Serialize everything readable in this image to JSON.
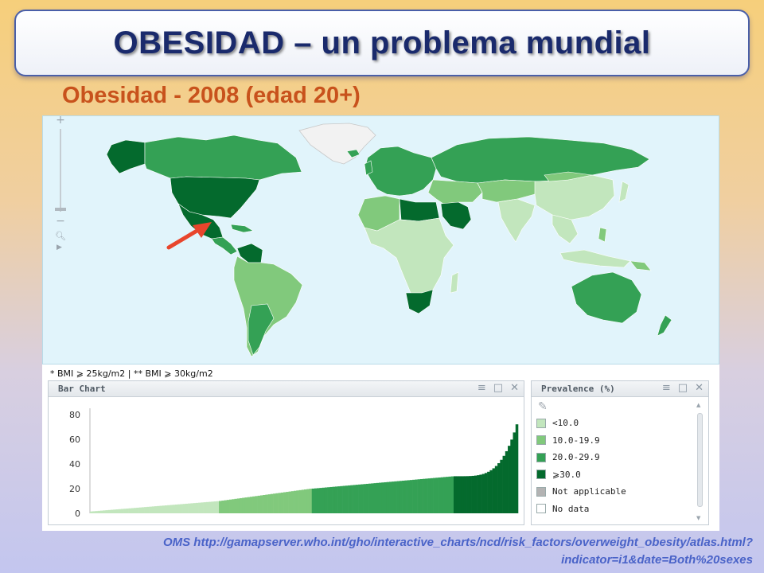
{
  "slide": {
    "title": "OBESIDAD –  un problema mundial",
    "subtitle": "Obesidad - 2008 (edad 20+)",
    "source_line1": "OMS http://gamapserver.who.int/gho/interactive_charts/ncd/risk_factors/overweight_obesity/atlas.html?",
    "source_line2": "indicator=i1&date=Both%20sexes"
  },
  "map": {
    "zoom_in": "+",
    "zoom_out": "−",
    "ocean_color": "#e1f4fb",
    "arrow_color": "#e8452c",
    "bmi_note": "* BMI ⩾ 25kg/m2  | ** BMI ⩾ 30kg/m2"
  },
  "bar_chart": {
    "title": "Bar Chart",
    "tools": [
      "≡",
      "□",
      "✕"
    ]
  },
  "legend": {
    "title": "Prevalence (%)",
    "tools": [
      "≡",
      "□",
      "✕"
    ],
    "items": [
      {
        "label": "<10.0",
        "color": "#c2e6bd"
      },
      {
        "label": "10.0-19.9",
        "color": "#81c97c"
      },
      {
        "label": "20.0-29.9",
        "color": "#34a155"
      },
      {
        "label": "⩾30.0",
        "color": "#046a2d"
      },
      {
        "label": "Not applicable",
        "color": "#b3b3b3"
      },
      {
        "label": "No data",
        "color": "#ffffff"
      }
    ]
  },
  "chart_data": {
    "type": "bar",
    "yticks": [
      "80",
      "60",
      "40",
      "20",
      "0"
    ],
    "ylim": [
      0,
      85
    ],
    "groups": [
      {
        "name": "<10.0",
        "color": "#c2e6bd",
        "count": 50,
        "from": 1.5,
        "to": 9.8
      },
      {
        "name": "10.0-19.9",
        "color": "#81c97c",
        "count": 36,
        "from": 10.0,
        "to": 19.9
      },
      {
        "name": "20.0-29.9",
        "color": "#34a155",
        "count": 55,
        "from": 20.0,
        "to": 29.9
      },
      {
        "name": "⩾30.0",
        "color": "#046a2d",
        "count": 25,
        "from": 30.0,
        "to": 72.0
      }
    ]
  }
}
